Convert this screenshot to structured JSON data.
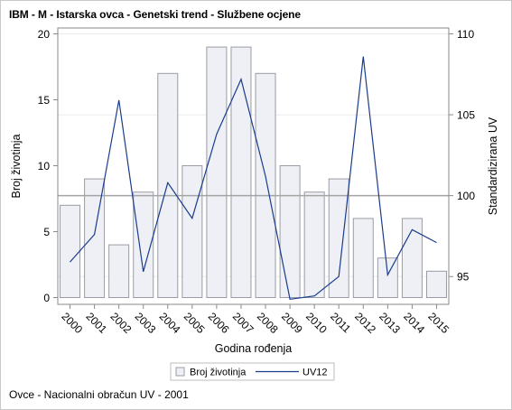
{
  "title": "IBM - M - Istarska ovca - Genetski trend - Službene ocjene",
  "footnote": "Ovce - Nacionalni obračun UV - 2001",
  "colors": {
    "bar_fill": "#eef0f6",
    "bar_stroke": "#9a9ca4",
    "line": "#1a3c8c",
    "refline": "#a4a4a4",
    "grid": "#ebebeb",
    "axis": "#8a8a8a"
  },
  "chart_data": {
    "type": "bar-line",
    "categories": [
      "2000",
      "2001",
      "2002",
      "2003",
      "2004",
      "2005",
      "2006",
      "2007",
      "2008",
      "2009",
      "2010",
      "2011",
      "2012",
      "2013",
      "2014",
      "2015"
    ],
    "series": [
      {
        "name": "Broj životinja",
        "type": "bar",
        "axis": "y",
        "values": [
          7,
          9,
          4,
          8,
          17,
          10,
          19,
          19,
          17,
          10,
          8,
          9,
          6,
          3,
          6,
          2
        ]
      },
      {
        "name": "UV12",
        "type": "line",
        "axis": "y2",
        "values": [
          95.9,
          97.6,
          105.9,
          95.3,
          100.8,
          98.6,
          103.8,
          107.2,
          101.2,
          93.6,
          93.8,
          95.0,
          108.6,
          95.1,
          97.9,
          97.1
        ]
      }
    ],
    "xlabel": "Godina rođenja",
    "ylabel": "Broj životinja",
    "y2label": "Standardizirana UV",
    "ylim": [
      0,
      20
    ],
    "y2lim": [
      93.7,
      110
    ],
    "yticks": [
      0,
      5,
      10,
      15,
      20
    ],
    "y2ticks": [
      95,
      100,
      105,
      110
    ],
    "reference_line_y2": 100,
    "legend": {
      "position": "bottom",
      "entries": [
        "Broj životinja",
        "UV12"
      ]
    }
  }
}
